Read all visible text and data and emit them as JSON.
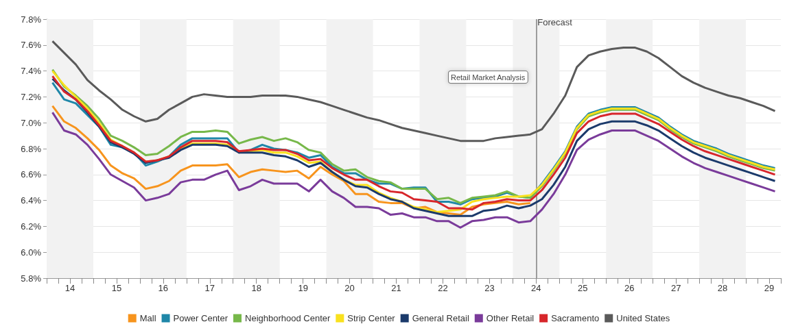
{
  "chart_data": {
    "type": "line",
    "x": [
      14.125,
      14.375,
      14.625,
      14.875,
      15.125,
      15.375,
      15.625,
      15.875,
      16.125,
      16.375,
      16.625,
      16.875,
      17.125,
      17.375,
      17.625,
      17.875,
      18.125,
      18.375,
      18.625,
      18.875,
      19.125,
      19.375,
      19.625,
      19.875,
      20.125,
      20.375,
      20.625,
      20.875,
      21.125,
      21.375,
      21.625,
      21.875,
      22.125,
      22.375,
      22.625,
      22.875,
      23.125,
      23.375,
      23.625,
      23.875,
      24.125,
      24.375,
      24.625,
      24.875,
      25.125,
      25.375,
      25.625,
      25.875,
      26.125,
      26.375,
      26.625,
      26.875,
      27.125,
      27.375,
      27.625,
      27.875,
      28.125,
      28.375,
      28.625,
      28.875,
      29.125,
      29.375,
      29.625
    ],
    "series": [
      {
        "name": "Mall",
        "color": "#f7941d",
        "values": [
          7.13,
          7.01,
          6.96,
          6.88,
          6.79,
          6.67,
          6.61,
          6.57,
          6.49,
          6.51,
          6.55,
          6.63,
          6.67,
          6.67,
          6.67,
          6.68,
          6.58,
          6.62,
          6.64,
          6.63,
          6.62,
          6.63,
          6.57,
          6.66,
          6.6,
          6.55,
          6.45,
          6.45,
          6.39,
          6.38,
          6.38,
          6.34,
          6.35,
          6.31,
          6.3,
          6.29,
          6.35,
          6.37,
          6.38,
          6.39,
          6.37,
          6.38,
          null,
          null,
          null,
          null,
          null,
          null,
          null,
          null,
          null,
          null,
          null,
          null,
          null,
          null,
          null,
          null,
          null,
          null,
          null,
          null,
          null
        ]
      },
      {
        "name": "Power Center",
        "color": "#1f87a8",
        "values": [
          7.31,
          7.18,
          7.15,
          7.06,
          6.97,
          6.83,
          6.81,
          6.77,
          6.67,
          6.7,
          6.74,
          6.83,
          6.88,
          6.88,
          6.88,
          6.88,
          6.77,
          6.79,
          6.83,
          6.8,
          6.79,
          6.77,
          6.73,
          6.75,
          6.66,
          6.61,
          6.61,
          6.56,
          6.53,
          6.53,
          6.49,
          6.5,
          6.5,
          6.39,
          6.39,
          6.37,
          6.41,
          6.42,
          6.43,
          6.46,
          6.43,
          6.42,
          6.53,
          6.65,
          6.78,
          6.97,
          7.07,
          7.1,
          7.12,
          7.12,
          7.12,
          7.08,
          7.04,
          6.97,
          6.91,
          6.86,
          6.83,
          6.8,
          6.76,
          6.73,
          6.7,
          6.67,
          6.65
        ]
      },
      {
        "name": "Neighborhood Center",
        "color": "#77b84a",
        "values": [
          7.41,
          7.28,
          7.21,
          7.13,
          7.03,
          6.9,
          6.86,
          6.81,
          6.75,
          6.76,
          6.82,
          6.89,
          6.93,
          6.93,
          6.94,
          6.93,
          6.84,
          6.87,
          6.89,
          6.86,
          6.88,
          6.85,
          6.79,
          6.77,
          6.68,
          6.63,
          6.64,
          6.58,
          6.55,
          6.54,
          6.49,
          6.49,
          6.49,
          6.41,
          6.42,
          6.38,
          6.42,
          6.43,
          6.44,
          6.47,
          6.43,
          6.42,
          6.51,
          6.63,
          6.76,
          6.95,
          7.05,
          7.08,
          7.1,
          7.1,
          7.1,
          7.06,
          7.02,
          6.95,
          6.89,
          6.84,
          6.81,
          6.78,
          6.74,
          6.71,
          6.68,
          6.65,
          6.63
        ]
      },
      {
        "name": "Strip Center",
        "color": "#f9e11e",
        "values": [
          7.4,
          7.29,
          7.2,
          7.11,
          7.0,
          6.87,
          6.82,
          6.77,
          6.7,
          6.71,
          6.74,
          6.8,
          6.84,
          6.84,
          6.84,
          6.83,
          6.78,
          6.78,
          6.79,
          6.77,
          6.77,
          6.74,
          6.69,
          6.7,
          6.62,
          6.56,
          6.52,
          6.52,
          6.46,
          6.42,
          6.39,
          6.35,
          6.33,
          6.31,
          6.32,
          6.33,
          6.39,
          6.41,
          6.42,
          6.43,
          6.43,
          6.44,
          6.52,
          6.64,
          6.77,
          6.96,
          7.06,
          7.09,
          7.11,
          7.11,
          7.11,
          7.07,
          7.03,
          6.96,
          6.9,
          6.85,
          6.82,
          6.79,
          6.75,
          6.72,
          6.69,
          6.66,
          6.64
        ]
      },
      {
        "name": "General Retail",
        "color": "#1b3a6b",
        "values": [
          7.34,
          7.25,
          7.18,
          7.08,
          6.97,
          6.85,
          6.81,
          6.76,
          6.69,
          6.71,
          6.73,
          6.79,
          6.83,
          6.83,
          6.83,
          6.82,
          6.77,
          6.77,
          6.77,
          6.75,
          6.74,
          6.71,
          6.66,
          6.69,
          6.62,
          6.56,
          6.51,
          6.5,
          6.45,
          6.41,
          6.39,
          6.34,
          6.32,
          6.3,
          6.28,
          6.28,
          6.28,
          6.32,
          6.33,
          6.36,
          6.34,
          6.36,
          6.41,
          6.52,
          6.66,
          6.86,
          6.95,
          6.99,
          7.01,
          7.01,
          7.01,
          6.98,
          6.94,
          6.88,
          6.82,
          6.77,
          6.73,
          6.7,
          6.67,
          6.64,
          6.61,
          6.58,
          6.55
        ]
      },
      {
        "name": "Other Retail",
        "color": "#7a3b9a",
        "values": [
          7.08,
          6.94,
          6.91,
          6.83,
          6.72,
          6.6,
          6.55,
          6.5,
          6.4,
          6.42,
          6.45,
          6.54,
          6.56,
          6.56,
          6.6,
          6.63,
          6.48,
          6.51,
          6.56,
          6.53,
          6.53,
          6.53,
          6.47,
          6.56,
          6.47,
          6.42,
          6.35,
          6.35,
          6.34,
          6.29,
          6.3,
          6.27,
          6.27,
          6.24,
          6.24,
          6.19,
          6.24,
          6.25,
          6.27,
          6.27,
          6.23,
          6.24,
          6.33,
          6.45,
          6.6,
          6.79,
          6.87,
          6.91,
          6.94,
          6.94,
          6.94,
          6.9,
          6.86,
          6.8,
          6.74,
          6.69,
          6.65,
          6.62,
          6.59,
          6.56,
          6.53,
          6.5,
          6.47
        ]
      },
      {
        "name": "Sacramento",
        "color": "#d7262b",
        "values": [
          7.36,
          7.24,
          7.18,
          7.09,
          6.98,
          6.86,
          6.82,
          6.77,
          6.7,
          6.71,
          6.74,
          6.81,
          6.86,
          6.86,
          6.86,
          6.85,
          6.78,
          6.79,
          6.8,
          6.79,
          6.79,
          6.76,
          6.71,
          6.72,
          6.65,
          6.6,
          6.56,
          6.56,
          6.51,
          6.47,
          6.46,
          6.41,
          6.4,
          6.39,
          6.34,
          6.34,
          6.33,
          6.38,
          6.39,
          6.41,
          6.4,
          6.4,
          6.48,
          6.6,
          6.73,
          6.92,
          7.01,
          7.05,
          7.07,
          7.07,
          7.07,
          7.03,
          6.99,
          6.93,
          6.87,
          6.82,
          6.78,
          6.75,
          6.72,
          6.69,
          6.66,
          6.63,
          6.6
        ]
      },
      {
        "name": "United States",
        "color": "#5a5a5a",
        "values": [
          7.63,
          7.54,
          7.45,
          7.33,
          7.25,
          7.18,
          7.1,
          7.05,
          7.01,
          7.03,
          7.1,
          7.15,
          7.2,
          7.22,
          7.21,
          7.2,
          7.2,
          7.2,
          7.21,
          7.21,
          7.21,
          7.2,
          7.18,
          7.16,
          7.13,
          7.1,
          7.07,
          7.04,
          7.02,
          6.99,
          6.96,
          6.94,
          6.92,
          6.9,
          6.88,
          6.86,
          6.86,
          6.86,
          6.88,
          6.89,
          6.9,
          6.91,
          6.95,
          7.07,
          7.21,
          7.43,
          7.52,
          7.55,
          7.57,
          7.58,
          7.58,
          7.55,
          7.5,
          7.43,
          7.36,
          7.31,
          7.27,
          7.24,
          7.21,
          7.19,
          7.16,
          7.13,
          7.09
        ]
      }
    ],
    "xlim": [
      14,
      29.75
    ],
    "xticks": [
      {
        "value": 14,
        "label": null
      },
      {
        "value": 14.25,
        "label": null
      },
      {
        "value": 14.5,
        "label": "14"
      },
      {
        "value": 14.75,
        "label": null
      },
      {
        "value": 15,
        "label": null
      },
      {
        "value": 15.25,
        "label": null
      },
      {
        "value": 15.5,
        "label": "15"
      },
      {
        "value": 15.75,
        "label": null
      },
      {
        "value": 16,
        "label": null
      },
      {
        "value": 16.25,
        "label": null
      },
      {
        "value": 16.5,
        "label": "16"
      },
      {
        "value": 16.75,
        "label": null
      },
      {
        "value": 17,
        "label": null
      },
      {
        "value": 17.25,
        "label": null
      },
      {
        "value": 17.5,
        "label": "17"
      },
      {
        "value": 17.75,
        "label": null
      },
      {
        "value": 18,
        "label": null
      },
      {
        "value": 18.25,
        "label": null
      },
      {
        "value": 18.5,
        "label": "18"
      },
      {
        "value": 18.75,
        "label": null
      },
      {
        "value": 19,
        "label": null
      },
      {
        "value": 19.25,
        "label": null
      },
      {
        "value": 19.5,
        "label": "19"
      },
      {
        "value": 19.75,
        "label": null
      },
      {
        "value": 20,
        "label": null
      },
      {
        "value": 20.25,
        "label": null
      },
      {
        "value": 20.5,
        "label": "20"
      },
      {
        "value": 20.75,
        "label": null
      },
      {
        "value": 21,
        "label": null
      },
      {
        "value": 21.25,
        "label": null
      },
      {
        "value": 21.5,
        "label": "21"
      },
      {
        "value": 21.75,
        "label": null
      },
      {
        "value": 22,
        "label": null
      },
      {
        "value": 22.25,
        "label": null
      },
      {
        "value": 22.5,
        "label": "22"
      },
      {
        "value": 22.75,
        "label": null
      },
      {
        "value": 23,
        "label": null
      },
      {
        "value": 23.25,
        "label": null
      },
      {
        "value": 23.5,
        "label": "23"
      },
      {
        "value": 23.75,
        "label": null
      },
      {
        "value": 24,
        "label": null
      },
      {
        "value": 24.25,
        "label": null
      },
      {
        "value": 24.5,
        "label": "24"
      },
      {
        "value": 24.75,
        "label": null
      },
      {
        "value": 25,
        "label": null
      },
      {
        "value": 25.25,
        "label": null
      },
      {
        "value": 25.5,
        "label": "25"
      },
      {
        "value": 25.75,
        "label": null
      },
      {
        "value": 26,
        "label": null
      },
      {
        "value": 26.25,
        "label": null
      },
      {
        "value": 26.5,
        "label": "26"
      },
      {
        "value": 26.75,
        "label": null
      },
      {
        "value": 27,
        "label": null
      },
      {
        "value": 27.25,
        "label": null
      },
      {
        "value": 27.5,
        "label": "27"
      },
      {
        "value": 27.75,
        "label": null
      },
      {
        "value": 28,
        "label": null
      },
      {
        "value": 28.25,
        "label": null
      },
      {
        "value": 28.5,
        "label": "28"
      },
      {
        "value": 28.75,
        "label": null
      },
      {
        "value": 29,
        "label": null
      },
      {
        "value": 29.25,
        "label": null
      },
      {
        "value": 29.5,
        "label": "29"
      },
      {
        "value": 29.75,
        "label": null
      }
    ],
    "ylim": [
      5.8,
      7.8
    ],
    "yticks": [
      {
        "value": 5.8,
        "label": "5.8%"
      },
      {
        "value": 6.0,
        "label": "6.0%"
      },
      {
        "value": 6.2,
        "label": "6.2%"
      },
      {
        "value": 6.4,
        "label": "6.4%"
      },
      {
        "value": 6.6,
        "label": "6.6%"
      },
      {
        "value": 6.8,
        "label": "6.8%"
      },
      {
        "value": 7.0,
        "label": "7.0%"
      },
      {
        "value": 7.2,
        "label": "7.2%"
      },
      {
        "value": 7.4,
        "label": "7.4%"
      },
      {
        "value": 7.6,
        "label": "7.6%"
      },
      {
        "value": 7.8,
        "label": "7.8%"
      }
    ],
    "bands": [
      {
        "axis": "x",
        "from": 14,
        "to": 15,
        "color": "#f2f2f2"
      },
      {
        "axis": "x",
        "from": 16,
        "to": 17,
        "color": "#f2f2f2"
      },
      {
        "axis": "x",
        "from": 18,
        "to": 19,
        "color": "#f2f2f2"
      },
      {
        "axis": "x",
        "from": 20,
        "to": 21,
        "color": "#f2f2f2"
      },
      {
        "axis": "x",
        "from": 22,
        "to": 23,
        "color": "#f2f2f2"
      },
      {
        "axis": "x",
        "from": 24,
        "to": 25,
        "color": "#f2f2f2"
      },
      {
        "axis": "x",
        "from": 26,
        "to": 27,
        "color": "#f2f2f2"
      },
      {
        "axis": "x",
        "from": 28,
        "to": 29,
        "color": "#f2f2f2"
      }
    ],
    "ref_lines": [
      {
        "axis": "x",
        "value": 24.5,
        "label": "Forecast",
        "color": "#7f7f7f"
      }
    ],
    "annotations": [
      "Retail Market Analysis"
    ],
    "grid": "y",
    "legend": "bottom"
  }
}
